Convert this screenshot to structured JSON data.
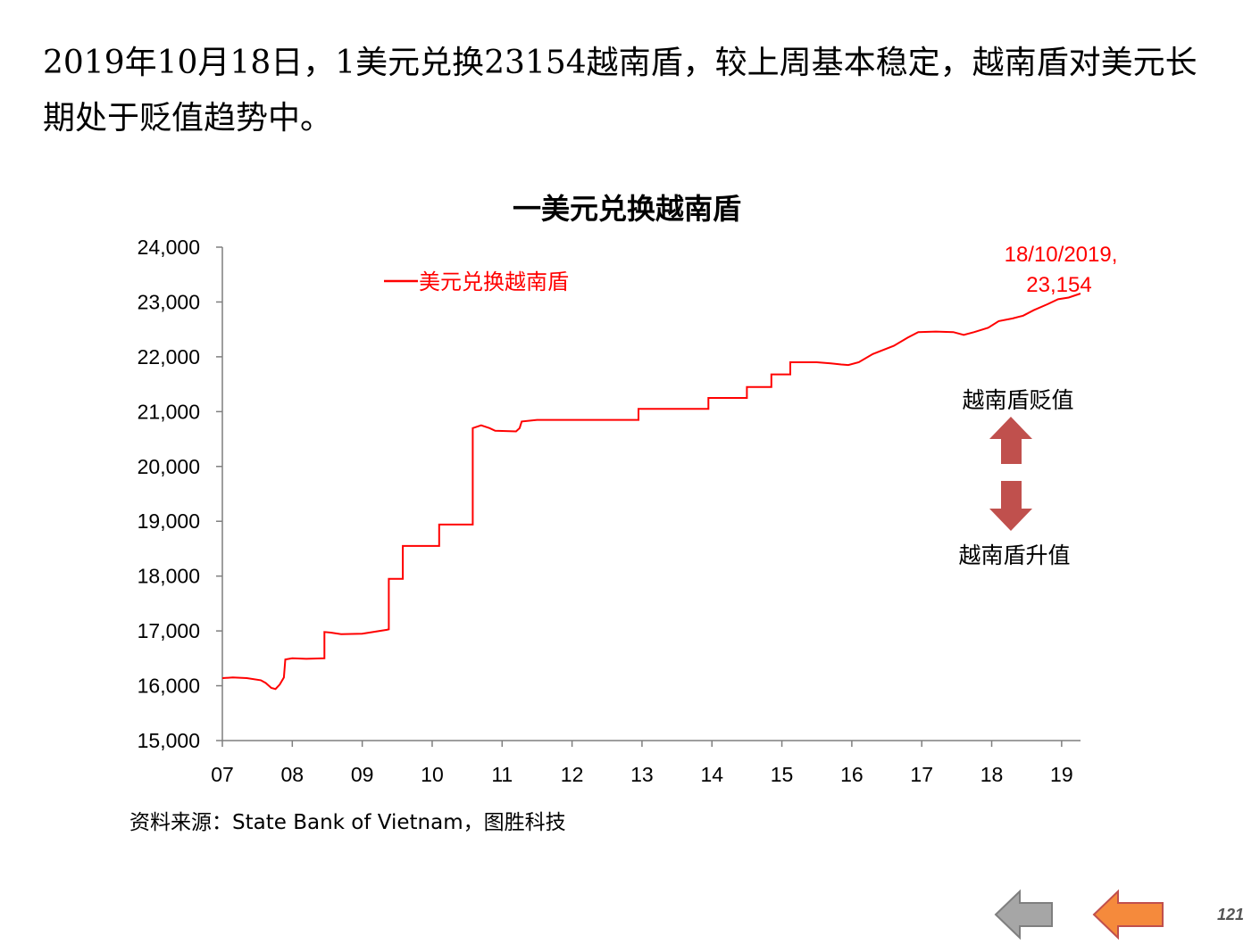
{
  "headline": "2019年10月18日，1美元兑换23154越南盾，较上周基本稳定，越南盾对美元长期处于贬值趋势中。",
  "chart_data": {
    "type": "line",
    "title": "一美元兑换越南盾",
    "xlabel": "",
    "ylabel": "",
    "x_ticks": [
      "07",
      "08",
      "09",
      "10",
      "11",
      "12",
      "13",
      "14",
      "15",
      "16",
      "17",
      "18",
      "19"
    ],
    "y_ticks": [
      "15,000",
      "16,000",
      "17,000",
      "18,000",
      "19,000",
      "20,000",
      "21,000",
      "22,000",
      "23,000",
      "24,000"
    ],
    "ylim": [
      15000,
      24000
    ],
    "xlim": [
      2007.0,
      2019.27
    ],
    "grid": false,
    "legend_position": "top-left",
    "series": [
      {
        "name": "美元兑换越南盾",
        "color": "#ff0000",
        "points": [
          [
            2007.0,
            16140
          ],
          [
            2007.15,
            16150
          ],
          [
            2007.35,
            16140
          ],
          [
            2007.55,
            16100
          ],
          [
            2007.62,
            16050
          ],
          [
            2007.7,
            15960
          ],
          [
            2007.76,
            15940
          ],
          [
            2007.82,
            16020
          ],
          [
            2007.88,
            16150
          ],
          [
            2007.9,
            16480
          ],
          [
            2008.0,
            16500
          ],
          [
            2008.2,
            16490
          ],
          [
            2008.46,
            16500
          ],
          [
            2008.46,
            16980
          ],
          [
            2008.55,
            16970
          ],
          [
            2008.7,
            16940
          ],
          [
            2009.0,
            16950
          ],
          [
            2009.35,
            17020
          ],
          [
            2009.38,
            17030
          ],
          [
            2009.38,
            17950
          ],
          [
            2009.58,
            17950
          ],
          [
            2009.58,
            18550
          ],
          [
            2010.1,
            18550
          ],
          [
            2010.1,
            18940
          ],
          [
            2010.58,
            18940
          ],
          [
            2010.58,
            20700
          ],
          [
            2010.7,
            20750
          ],
          [
            2010.82,
            20700
          ],
          [
            2010.9,
            20650
          ],
          [
            2011.2,
            20640
          ],
          [
            2011.25,
            20700
          ],
          [
            2011.28,
            20820
          ],
          [
            2011.5,
            20850
          ],
          [
            2012.5,
            20850
          ],
          [
            2012.95,
            20850
          ],
          [
            2012.95,
            21050
          ],
          [
            2013.95,
            21050
          ],
          [
            2013.95,
            21250
          ],
          [
            2014.5,
            21250
          ],
          [
            2014.5,
            21450
          ],
          [
            2014.85,
            21450
          ],
          [
            2014.85,
            21680
          ],
          [
            2015.12,
            21680
          ],
          [
            2015.12,
            21900
          ],
          [
            2015.5,
            21900
          ],
          [
            2015.7,
            21880
          ],
          [
            2015.85,
            21860
          ],
          [
            2015.95,
            21850
          ],
          [
            2016.1,
            21900
          ],
          [
            2016.3,
            22050
          ],
          [
            2016.6,
            22200
          ],
          [
            2016.8,
            22350
          ],
          [
            2016.95,
            22450
          ],
          [
            2017.2,
            22460
          ],
          [
            2017.45,
            22450
          ],
          [
            2017.6,
            22400
          ],
          [
            2017.75,
            22450
          ],
          [
            2017.95,
            22530
          ],
          [
            2018.1,
            22650
          ],
          [
            2018.3,
            22700
          ],
          [
            2018.45,
            22750
          ],
          [
            2018.6,
            22850
          ],
          [
            2018.8,
            22960
          ],
          [
            2018.95,
            23050
          ],
          [
            2019.1,
            23080
          ],
          [
            2019.27,
            23154
          ]
        ]
      }
    ],
    "annotations": {
      "last_point_date": "18/10/2019,",
      "last_point_value": "23,154",
      "up_label": "越南盾贬值",
      "down_label": "越南盾升值"
    },
    "source": "资料来源：State Bank of Vietnam，图胜科技"
  },
  "nav": {
    "prev_color": "#a6a6a6",
    "next_color": "#f58a3c"
  },
  "page_number": "121"
}
